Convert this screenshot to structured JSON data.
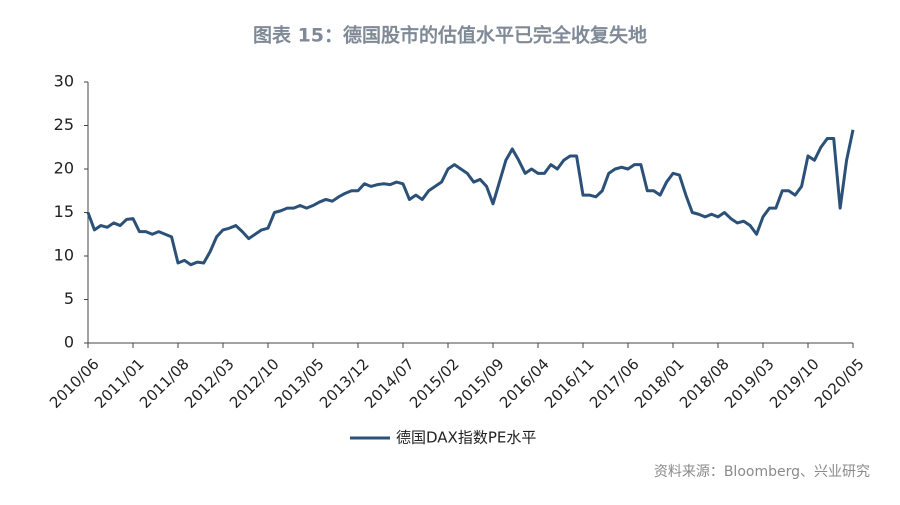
{
  "chart_data": {
    "type": "line",
    "title": "图表 15：德国股市的估值水平已完全收复失地",
    "source": "资料来源：Bloomberg、兴业研究",
    "x": [
      "2010/06",
      null,
      null,
      null,
      null,
      null,
      null,
      "2011/01",
      null,
      null,
      null,
      null,
      null,
      null,
      "2011/08",
      null,
      null,
      null,
      null,
      null,
      null,
      "2012/03",
      null,
      null,
      null,
      null,
      null,
      null,
      "2012/10",
      null,
      null,
      null,
      null,
      null,
      null,
      "2013/05",
      null,
      null,
      null,
      null,
      null,
      null,
      "2013/12",
      null,
      null,
      null,
      null,
      null,
      null,
      "2014/07",
      null,
      null,
      null,
      null,
      null,
      null,
      "2015/02",
      null,
      null,
      null,
      null,
      null,
      null,
      "2015/09",
      null,
      null,
      null,
      null,
      null,
      null,
      "2016/04",
      null,
      null,
      null,
      null,
      null,
      null,
      "2016/11",
      null,
      null,
      null,
      null,
      null,
      null,
      "2017/06",
      null,
      null,
      null,
      null,
      null,
      null,
      "2018/01",
      null,
      null,
      null,
      null,
      null,
      null,
      "2018/08",
      null,
      null,
      null,
      null,
      null,
      null,
      "2019/03",
      null,
      null,
      null,
      null,
      null,
      null,
      "2019/10",
      null,
      null,
      null,
      null,
      null,
      null,
      "2020/05"
    ],
    "series": [
      {
        "name": "德国DAX指数PE水平",
        "color": "#2b5178",
        "values": [
          15,
          13,
          13.5,
          13.3,
          13.8,
          13.5,
          14.2,
          14.3,
          12.8,
          12.8,
          12.5,
          12.8,
          12.5,
          12.2,
          9.2,
          9.5,
          9,
          9.3,
          9.2,
          10.5,
          12.2,
          13,
          13.2,
          13.5,
          12.8,
          12,
          12.5,
          13,
          13.2,
          15,
          15.2,
          15.5,
          15.5,
          15.8,
          15.5,
          15.8,
          16.2,
          16.5,
          16.3,
          16.8,
          17.2,
          17.5,
          17.5,
          18.3,
          18,
          18.2,
          18.3,
          18.2,
          18.5,
          18.3,
          16.5,
          17,
          16.5,
          17.5,
          18,
          18.5,
          20,
          20.5,
          20,
          19.5,
          18.5,
          18.8,
          18,
          16,
          18.5,
          21,
          22.3,
          21,
          19.5,
          20,
          19.5,
          19.5,
          20.5,
          20,
          21,
          21.5,
          21.5,
          17,
          17,
          16.8,
          17.5,
          19.5,
          20,
          20.2,
          20,
          20.5,
          20.5,
          17.5,
          17.5,
          17,
          18.5,
          19.5,
          19.3,
          17,
          15,
          14.8,
          14.5,
          14.8,
          14.5,
          15,
          14.3,
          13.8,
          14,
          13.5,
          12.5,
          14.5,
          15.5,
          15.5,
          17.5,
          17.5,
          17,
          18,
          21.5,
          21,
          22.5,
          23.5,
          23.5,
          15.5,
          21,
          24.5
        ]
      }
    ],
    "ylim": [
      0,
      30
    ],
    "yticks": [
      0,
      5,
      10,
      15,
      20,
      25,
      30
    ],
    "grid": false
  }
}
